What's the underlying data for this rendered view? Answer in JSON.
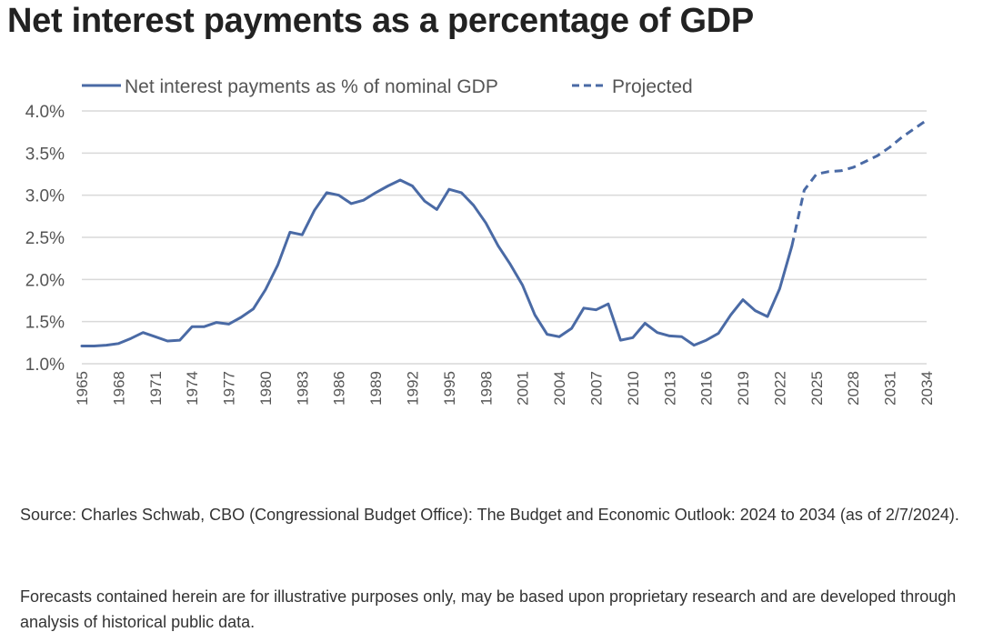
{
  "title": "Net interest payments as a percentage of GDP",
  "colors": {
    "series": "#4a6aa5",
    "grid": "#d9d9d9"
  },
  "chart_data": {
    "type": "line",
    "title": "Net interest payments as a percentage of GDP",
    "xlabel": "",
    "ylabel": "",
    "ylim": [
      1.0,
      4.0
    ],
    "xlim": [
      1965,
      2034
    ],
    "y_ticks": [
      1.0,
      1.5,
      2.0,
      2.5,
      3.0,
      3.5,
      4.0
    ],
    "y_tick_labels": [
      "1.0%",
      "1.5%",
      "2.0%",
      "2.5%",
      "3.0%",
      "3.5%",
      "4.0%"
    ],
    "x_ticks": [
      1965,
      1968,
      1971,
      1974,
      1977,
      1980,
      1983,
      1986,
      1989,
      1992,
      1995,
      1998,
      2001,
      2004,
      2007,
      2010,
      2013,
      2016,
      2019,
      2022,
      2025,
      2028,
      2031,
      2034
    ],
    "x_tick_labels": [
      "1965",
      "1968",
      "1971",
      "1974",
      "1977",
      "1980",
      "1983",
      "1986",
      "1989",
      "1992",
      "1995",
      "1998",
      "2001",
      "2004",
      "2007",
      "2010",
      "2013",
      "2016",
      "2019",
      "2022",
      "2025",
      "2028",
      "2031",
      "2034"
    ],
    "grid": "horizontal",
    "legend_position": "top",
    "series": [
      {
        "name": "Net interest payments as % of nominal GDP",
        "style": "solid",
        "x": [
          1965,
          1966,
          1967,
          1968,
          1969,
          1970,
          1971,
          1972,
          1973,
          1974,
          1975,
          1976,
          1977,
          1978,
          1979,
          1980,
          1981,
          1982,
          1983,
          1984,
          1985,
          1986,
          1987,
          1988,
          1989,
          1990,
          1991,
          1992,
          1993,
          1994,
          1995,
          1996,
          1997,
          1998,
          1999,
          2000,
          2001,
          2002,
          2003,
          2004,
          2005,
          2006,
          2007,
          2008,
          2009,
          2010,
          2011,
          2012,
          2013,
          2014,
          2015,
          2016,
          2017,
          2018,
          2019,
          2020,
          2021,
          2022,
          2023
        ],
        "y": [
          1.21,
          1.21,
          1.22,
          1.24,
          1.3,
          1.37,
          1.32,
          1.27,
          1.28,
          1.44,
          1.44,
          1.49,
          1.47,
          1.55,
          1.65,
          1.88,
          2.17,
          2.56,
          2.53,
          2.82,
          3.03,
          3.0,
          2.9,
          2.94,
          3.03,
          3.11,
          3.18,
          3.11,
          2.93,
          2.83,
          3.07,
          3.03,
          2.88,
          2.67,
          2.4,
          2.18,
          1.93,
          1.58,
          1.35,
          1.32,
          1.42,
          1.66,
          1.64,
          1.71,
          1.28,
          1.31,
          1.48,
          1.37,
          1.33,
          1.32,
          1.22,
          1.28,
          1.36,
          1.58,
          1.76,
          1.63,
          1.56,
          1.89,
          2.4
        ]
      },
      {
        "name": "Projected",
        "style": "dashed",
        "x": [
          2023,
          2024,
          2025,
          2026,
          2027,
          2028,
          2029,
          2030,
          2031,
          2032,
          2033,
          2034
        ],
        "y": [
          2.4,
          3.06,
          3.25,
          3.28,
          3.29,
          3.33,
          3.4,
          3.47,
          3.57,
          3.69,
          3.79,
          3.89
        ]
      }
    ]
  },
  "notes": {
    "source": "Source: Charles Schwab, CBO (Congressional Budget Office): The Budget and Economic Outlook: 2024 to 2034 (as of 2/7/2024).",
    "forecast": "Forecasts contained herein are for illustrative purposes only, may be based upon proprietary research and are developed through analysis of historical public data."
  }
}
